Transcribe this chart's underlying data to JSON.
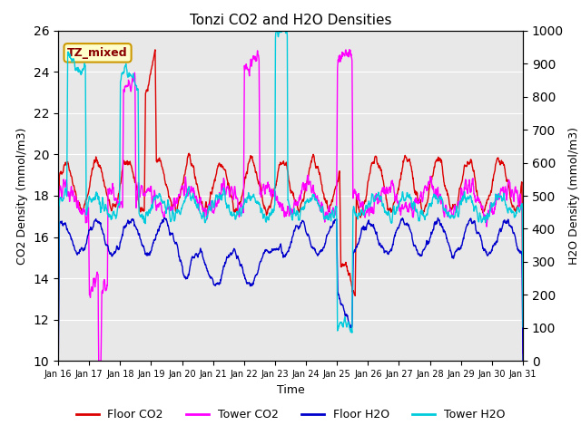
{
  "title": "Tonzi CO2 and H2O Densities",
  "xlabel": "Time",
  "ylabel_left": "CO2 Density (mmol/m3)",
  "ylabel_right": "H2O Density (mmol/m3)",
  "ylim_left": [
    10,
    26
  ],
  "ylim_right": [
    0,
    1000
  ],
  "yticks_left": [
    10,
    12,
    14,
    16,
    18,
    20,
    22,
    24,
    26
  ],
  "yticks_right": [
    0,
    100,
    200,
    300,
    400,
    500,
    600,
    700,
    800,
    900,
    1000
  ],
  "xtick_labels": [
    "Jan 16",
    "Jan 17",
    "Jan 18",
    "Jan 19",
    "Jan 20",
    "Jan 21",
    "Jan 22",
    "Jan 23",
    "Jan 24",
    "Jan 25",
    "Jan 26",
    "Jan 27",
    "Jan 28",
    "Jan 29",
    "Jan 30",
    "Jan 31"
  ],
  "annotation_text": "TZ_mixed",
  "annotation_bg": "#ffffcc",
  "annotation_edge": "#cc9900",
  "annotation_text_color": "#880000",
  "colors": {
    "floor_co2": "#dd0000",
    "tower_co2": "#ff00ff",
    "floor_h2o": "#0000cc",
    "tower_h2o": "#00ccdd"
  },
  "legend_labels": [
    "Floor CO2",
    "Tower CO2",
    "Floor H2O",
    "Tower H2O"
  ],
  "background_color": "#e8e8e8",
  "n_points": 1500,
  "seed": 42
}
